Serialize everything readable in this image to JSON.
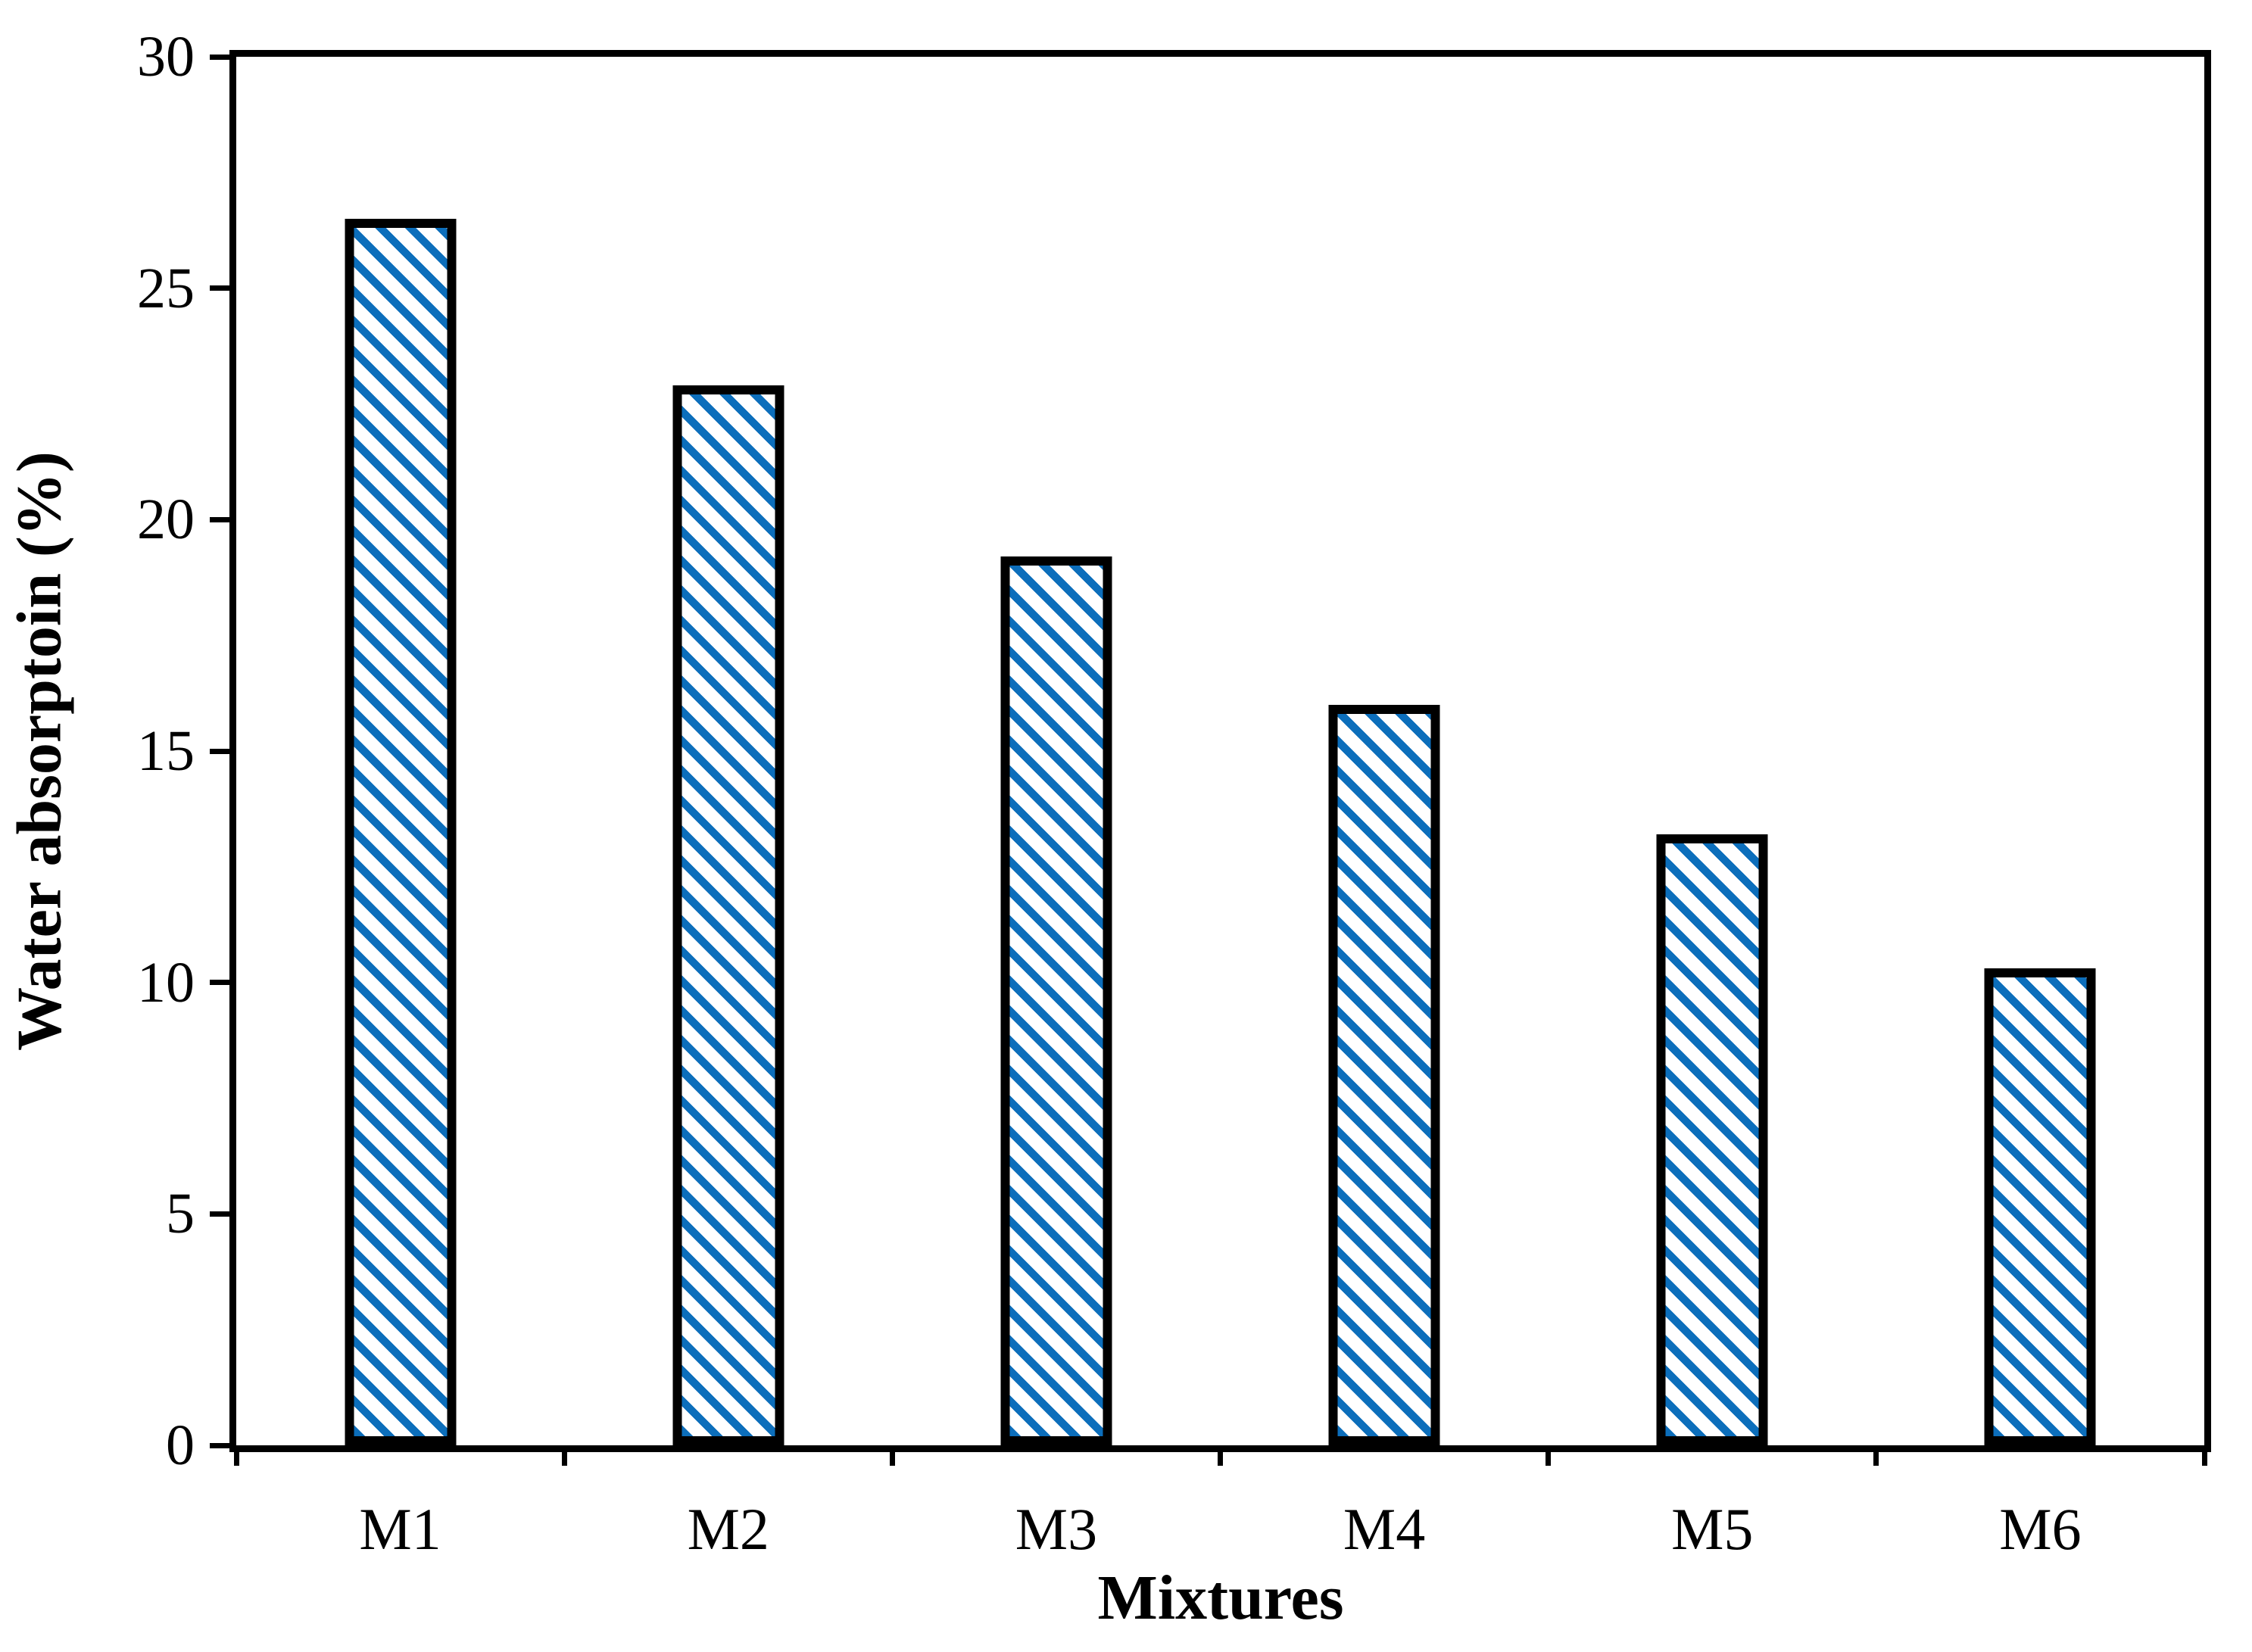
{
  "figure": {
    "background_color": "#ffffff",
    "plot_border_color": "#000000"
  },
  "chart_data": {
    "type": "bar",
    "categories": [
      "M1",
      "M2",
      "M3",
      "M4",
      "M5",
      "M6"
    ],
    "values": [
      26.5,
      22.9,
      19.2,
      16.0,
      13.2,
      10.3
    ],
    "title": "",
    "xlabel": "Mixtures",
    "ylabel": "Water absorptoin (%)",
    "ylim": [
      0,
      30
    ],
    "yticks": [
      0,
      5,
      10,
      15,
      20,
      25,
      30
    ],
    "grid": false,
    "legend_position": "none",
    "bar_style": {
      "fill_pattern": "diagonal-hatch-backslash",
      "hatch_color": "#0c6ebb",
      "hatch_background": "#ffffff",
      "border_color": "#000000"
    },
    "axes_style": {
      "box": true,
      "tick_direction": "out",
      "x_ticks_at": "category-boundaries"
    }
  }
}
